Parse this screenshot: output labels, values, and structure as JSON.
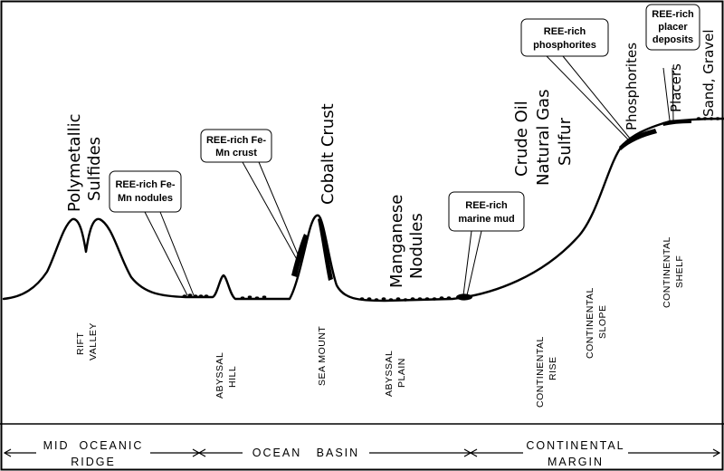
{
  "resource_labels": {
    "polymetallic": [
      "Polymetallic",
      "Sulfides"
    ],
    "cobalt_crust": "Cobalt Crust",
    "manganese": [
      "Manganese",
      "Nodules"
    ],
    "oil_gas": [
      "Crude Oil",
      "Natural Gas",
      "Sulfur"
    ],
    "phosphorites": "Phosphorites",
    "placers": "Placers",
    "sand_gravel": "Sand, Gravel"
  },
  "callouts": {
    "fe_mn_nodules": [
      "REE-rich Fe-",
      "Mn nodules"
    ],
    "fe_mn_crust": [
      "REE-rich Fe-",
      "Mn crust"
    ],
    "marine_mud": [
      "REE-rich",
      "marine mud"
    ],
    "phosphorites": [
      "REE-rich",
      "phosphorites"
    ],
    "placer": [
      "REE-rich",
      "placer",
      "deposits"
    ]
  },
  "zones": {
    "rift_valley": [
      "RIFT",
      "VALLEY"
    ],
    "abyssal_hill": [
      "ABYSSAL",
      "HILL"
    ],
    "sea_mount": [
      "SEA MOUNT"
    ],
    "abyssal_plain": [
      "ABYSSAL",
      "PLAIN"
    ],
    "continental_rise": [
      "CONTINENTAL",
      "RISE"
    ],
    "continental_slope": [
      "CONTINENTAL",
      "SLOPE"
    ],
    "continental_shelf": [
      "CONTINENTAL",
      "SHELF"
    ]
  },
  "regions": {
    "mid_oceanic_ridge": [
      "MID  OCEANIC",
      "RIDGE"
    ],
    "ocean_basin": [
      "OCEAN   BASIN"
    ],
    "continental_margin": [
      "CONTINENTAL",
      "MARGIN"
    ]
  }
}
